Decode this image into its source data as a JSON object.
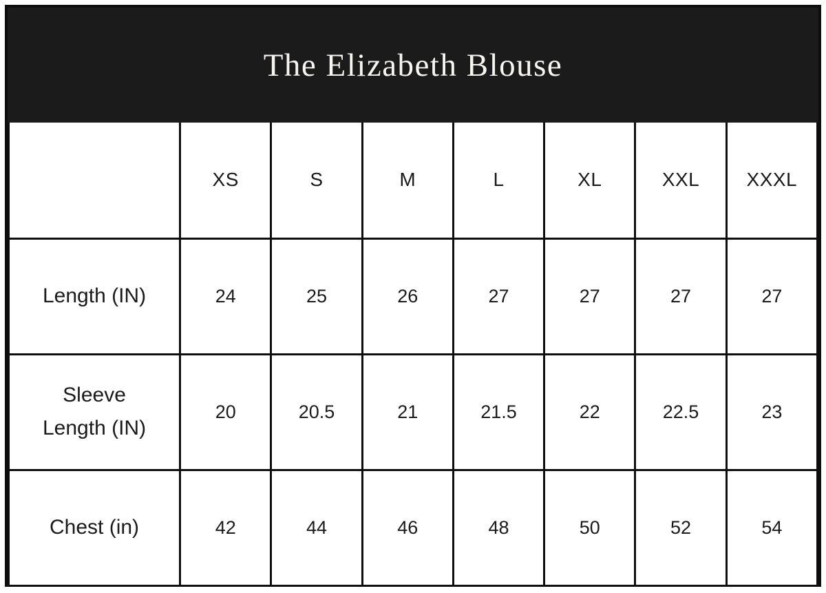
{
  "title": "The Elizabeth Blouse",
  "colors": {
    "header_bg": "#1b1b1b",
    "title_text": "#f7f5f1",
    "grid_border": "#0e0e0e",
    "cell_bg": "#ffffff",
    "cell_text": "#1a1a1a"
  },
  "table": {
    "corner_label": "",
    "size_headers": [
      "XS",
      "S",
      "M",
      "L",
      "XL",
      "XXL",
      "XXXL"
    ],
    "rows": [
      {
        "label": "Length (IN)",
        "values": [
          "24",
          "25",
          "26",
          "27",
          "27",
          "27",
          "27"
        ]
      },
      {
        "label": "Sleeve Length (IN)",
        "values": [
          "20",
          "20.5",
          "21",
          "21.5",
          "22",
          "22.5",
          "23"
        ]
      },
      {
        "label": "Chest (in)",
        "values": [
          "42",
          "44",
          "46",
          "48",
          "50",
          "52",
          "54"
        ]
      }
    ]
  },
  "chart_data": {
    "type": "table",
    "title": "The Elizabeth Blouse",
    "columns": [
      "",
      "XS",
      "S",
      "M",
      "L",
      "XL",
      "XXL",
      "XXXL"
    ],
    "rows": [
      [
        "Length (IN)",
        24,
        25,
        26,
        27,
        27,
        27,
        27
      ],
      [
        "Sleeve Length (IN)",
        20,
        20.5,
        21,
        21.5,
        22,
        22.5,
        23
      ],
      [
        "Chest (in)",
        42,
        44,
        46,
        48,
        50,
        52,
        54
      ]
    ]
  }
}
